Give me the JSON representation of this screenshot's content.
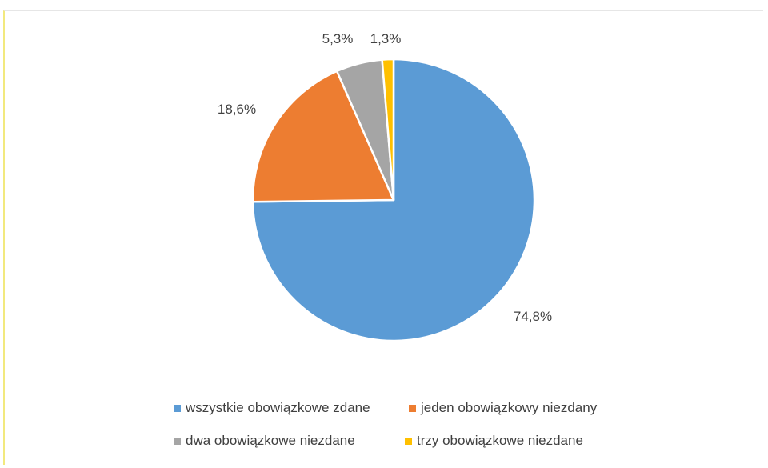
{
  "chart_data": {
    "type": "pie",
    "title": "",
    "categories": [
      "wszystkie obowiązkowe zdane",
      "jeden obowiązkowy niezdany",
      "dwa obowiązkowe niezdane",
      "trzy obowiązkowe niezdane"
    ],
    "values": [
      74.8,
      18.6,
      5.3,
      1.3
    ],
    "data_labels": [
      "74,8%",
      "18,6%",
      "5,3%",
      "1,3%"
    ],
    "colors": [
      "#5b9bd5",
      "#ed7d31",
      "#a5a5a5",
      "#ffc000"
    ],
    "legend_position": "bottom"
  }
}
